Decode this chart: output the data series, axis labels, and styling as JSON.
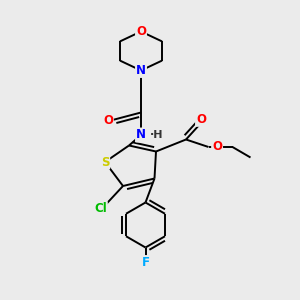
{
  "bg_color": "#ebebeb",
  "atom_colors": {
    "O": "#ff0000",
    "N": "#0000ff",
    "S": "#cccc00",
    "Cl": "#00bb00",
    "F": "#00aaff",
    "C": "#000000",
    "H": "#333333"
  },
  "bond_color": "#000000",
  "bond_width": 1.4,
  "font_size_atom": 8.5
}
